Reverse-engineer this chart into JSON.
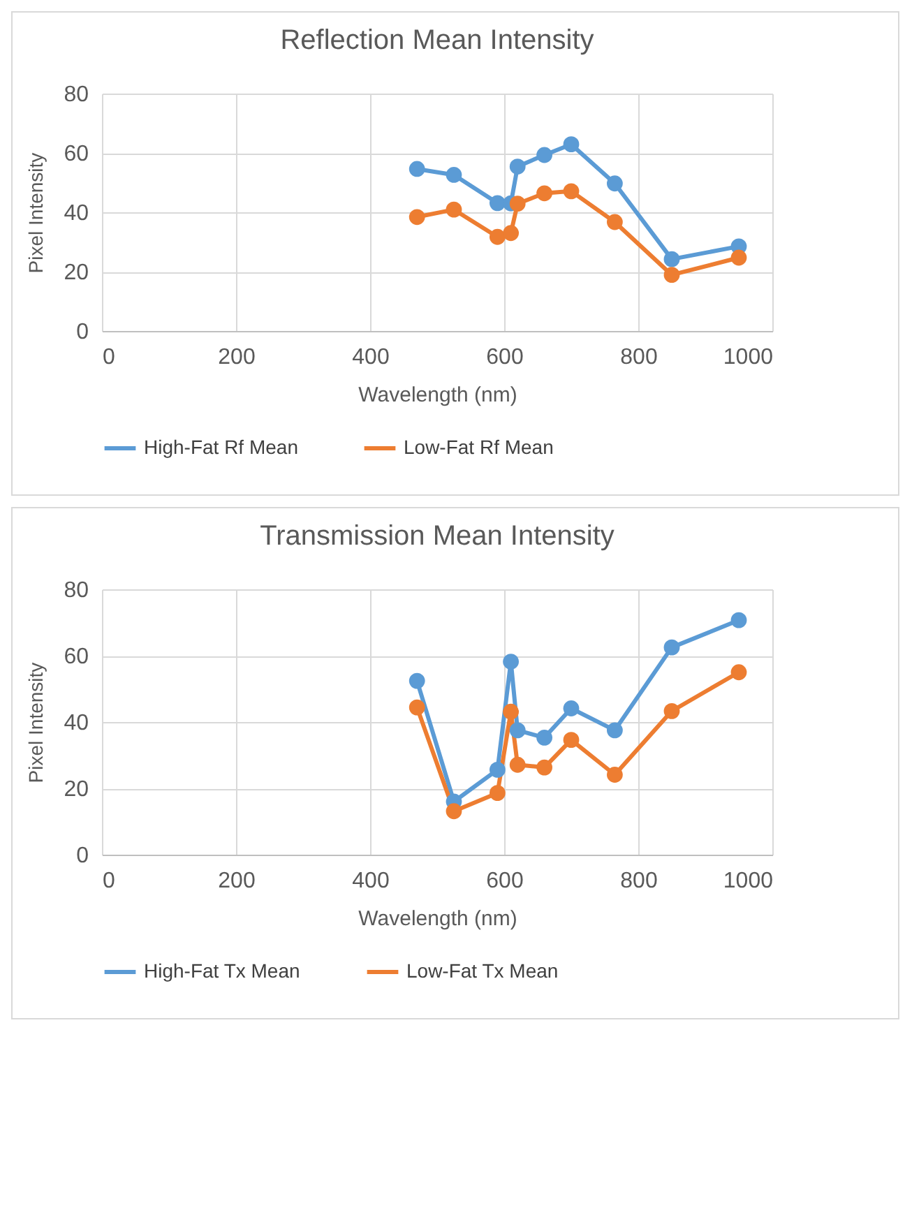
{
  "chart_data": [
    {
      "type": "line",
      "title": "Reflection Mean Intensity",
      "xlabel": "Wavelength (nm)",
      "ylabel": "Pixel Intensity",
      "x": [
        470,
        525,
        590,
        610,
        620,
        660,
        700,
        765,
        850,
        950
      ],
      "series": [
        {
          "name": "High-Fat Rf Mean",
          "color": "#5b9bd5",
          "values": [
            54.6,
            52.6,
            43.1,
            43,
            55.4,
            59.3,
            62.9,
            49.7,
            24.2,
            28.5
          ]
        },
        {
          "name": "Low-Fat Rf Mean",
          "color": "#ed7d31",
          "values": [
            38.4,
            40.9,
            31.7,
            33.0,
            42.9,
            46.4,
            47.1,
            36.7,
            18.9,
            24.7
          ]
        }
      ],
      "xlim": [
        0,
        1000
      ],
      "xticks": [
        0,
        200,
        400,
        600,
        800,
        1000
      ],
      "ylim": [
        0,
        80
      ],
      "yticks": [
        0,
        20,
        40,
        60,
        80
      ],
      "grid": true,
      "legend": "bottom",
      "marker": "circle",
      "line_style": "solid"
    },
    {
      "type": "line",
      "title": "Transmission Mean Intensity",
      "xlabel": "Wavelength (nm)",
      "ylabel": "Pixel Intensity",
      "x": [
        470,
        525,
        590,
        610,
        620,
        660,
        700,
        765,
        850,
        950
      ],
      "series": [
        {
          "name": "High-Fat Tx Mean",
          "color": "#5b9bd5",
          "values": [
            52.4,
            16.0,
            25.6,
            58.2,
            37.5,
            35.3,
            44.1,
            37.5,
            62.5,
            70.7
          ]
        },
        {
          "name": "Low-Fat Tx Mean",
          "color": "#ed7d31",
          "values": [
            44.4,
            13.1,
            18.6,
            43.1,
            27.1,
            26.3,
            34.6,
            24.1,
            43.3,
            55.0
          ]
        }
      ],
      "xlim": [
        0,
        1000
      ],
      "xticks": [
        0,
        200,
        400,
        600,
        800,
        1000
      ],
      "ylim": [
        0,
        80
      ],
      "yticks": [
        0,
        20,
        40,
        60,
        80
      ],
      "grid": true,
      "legend": "bottom",
      "marker": "circle",
      "line_style": "solid"
    }
  ]
}
